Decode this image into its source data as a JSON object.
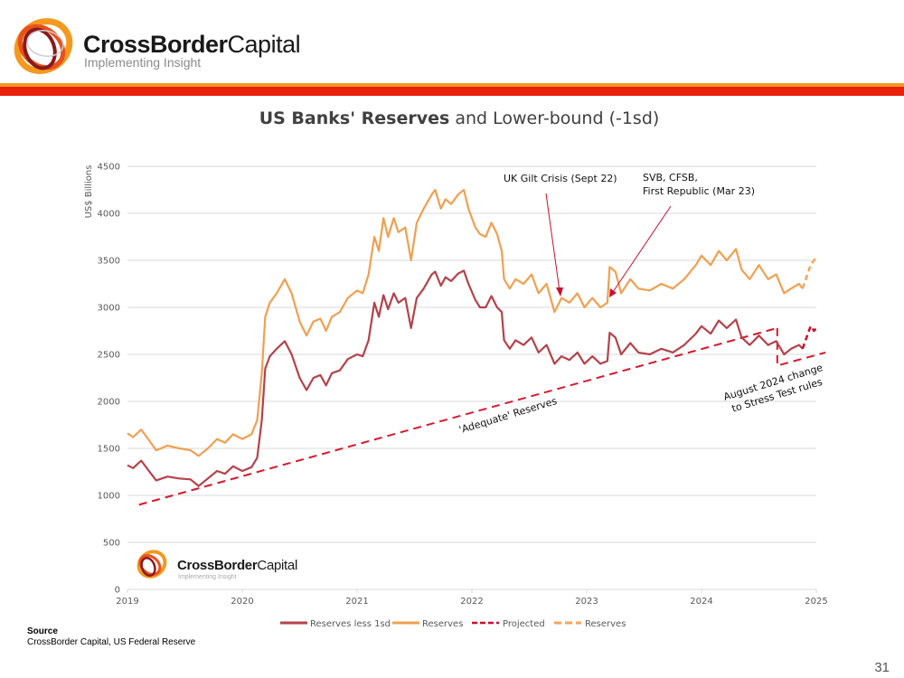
{
  "header": {
    "brand_bold": "CrossBorder",
    "brand_regular": "Capital",
    "tagline": "Implementing Insight",
    "colors": {
      "orange_rule": "#f39a1e",
      "red_band": "#e8200c"
    }
  },
  "watermark": {
    "brand_bold": "CrossBorder",
    "brand_regular": "Capital",
    "tagline": "Implementing Insight"
  },
  "footer": {
    "source_label": "Source",
    "source_text": "CrossBorder Capital, US Federal Reserve",
    "page_number": "31"
  },
  "chart_data": {
    "type": "line",
    "title_bold": "US Banks' Reserves",
    "title_rest": " and Lower-bound (-1sd)",
    "ylabel": "US$ Billions",
    "xlabel": "",
    "xlim": [
      2019,
      2025
    ],
    "ylim": [
      0,
      4500
    ],
    "x_ticks": [
      "2019",
      "2020",
      "2021",
      "2022",
      "2023",
      "2024",
      "2025"
    ],
    "y_ticks": [
      "0",
      "500",
      "1000",
      "1500",
      "2000",
      "2500",
      "3000",
      "3500",
      "4000",
      "4500"
    ],
    "grid": "horizontal",
    "legend_position": "bottom",
    "x": [
      2019.0,
      2019.05,
      2019.12,
      2019.18,
      2019.25,
      2019.35,
      2019.45,
      2019.55,
      2019.62,
      2019.7,
      2019.78,
      2019.85,
      2019.92,
      2020.0,
      2020.08,
      2020.13,
      2020.17,
      2020.2,
      2020.24,
      2020.3,
      2020.37,
      2020.43,
      2020.5,
      2020.56,
      2020.62,
      2020.68,
      2020.73,
      2020.78,
      2020.85,
      2020.92,
      2021.0,
      2021.05,
      2021.1,
      2021.15,
      2021.19,
      2021.23,
      2021.27,
      2021.32,
      2021.36,
      2021.42,
      2021.47,
      2021.52,
      2021.58,
      2021.65,
      2021.68,
      2021.73,
      2021.77,
      2021.82,
      2021.88,
      2021.93,
      2021.97,
      2022.03,
      2022.07,
      2022.12,
      2022.17,
      2022.22,
      2022.26,
      2022.28,
      2022.33,
      2022.38,
      2022.45,
      2022.52,
      2022.58,
      2022.65,
      2022.72,
      2022.78,
      2022.85,
      2022.92,
      2022.98,
      2023.05,
      2023.12,
      2023.18,
      2023.2,
      2023.25,
      2023.3,
      2023.38,
      2023.45,
      2023.55,
      2023.65,
      2023.75,
      2023.85,
      2023.95,
      2024.0,
      2024.08,
      2024.15,
      2024.22,
      2024.3,
      2024.35,
      2024.42,
      2024.5,
      2024.58,
      2024.65,
      2024.72,
      2024.78,
      2024.85,
      2024.88
    ],
    "series": [
      {
        "name": "Reserves less 1sd",
        "color": "#b5424a",
        "style": "solid",
        "values": [
          1320,
          1290,
          1370,
          1270,
          1160,
          1200,
          1180,
          1170,
          1100,
          1180,
          1260,
          1230,
          1310,
          1260,
          1300,
          1400,
          1800,
          2350,
          2480,
          2560,
          2640,
          2500,
          2250,
          2120,
          2250,
          2280,
          2170,
          2300,
          2330,
          2450,
          2500,
          2480,
          2650,
          3050,
          2900,
          3130,
          2980,
          3150,
          3050,
          3100,
          2780,
          3100,
          3200,
          3350,
          3380,
          3230,
          3320,
          3280,
          3360,
          3390,
          3250,
          3080,
          3000,
          3000,
          3120,
          3000,
          2950,
          2650,
          2560,
          2650,
          2600,
          2680,
          2520,
          2600,
          2400,
          2480,
          2440,
          2520,
          2400,
          2480,
          2400,
          2430,
          2730,
          2680,
          2500,
          2620,
          2520,
          2500,
          2560,
          2520,
          2600,
          2720,
          2800,
          2720,
          2860,
          2780,
          2870,
          2680,
          2600,
          2700,
          2600,
          2640,
          2500,
          2560,
          2600,
          2560
        ]
      },
      {
        "name": "Reserves",
        "color": "#f0a050",
        "style": "solid",
        "values": [
          1660,
          1620,
          1700,
          1600,
          1480,
          1530,
          1500,
          1480,
          1420,
          1500,
          1600,
          1560,
          1650,
          1600,
          1650,
          1800,
          2300,
          2900,
          3050,
          3150,
          3300,
          3150,
          2850,
          2700,
          2850,
          2880,
          2750,
          2900,
          2950,
          3100,
          3180,
          3150,
          3350,
          3750,
          3600,
          3950,
          3750,
          3950,
          3800,
          3850,
          3500,
          3900,
          4050,
          4200,
          4250,
          4050,
          4150,
          4100,
          4200,
          4250,
          4050,
          3850,
          3780,
          3750,
          3900,
          3780,
          3600,
          3300,
          3200,
          3300,
          3250,
          3350,
          3150,
          3250,
          2950,
          3100,
          3050,
          3150,
          3000,
          3100,
          3000,
          3050,
          3430,
          3380,
          3150,
          3300,
          3200,
          3180,
          3250,
          3200,
          3300,
          3450,
          3550,
          3450,
          3600,
          3500,
          3620,
          3400,
          3300,
          3450,
          3300,
          3350,
          3150,
          3200,
          3250,
          3200
        ]
      },
      {
        "name": "Projected",
        "color": "#c8102e",
        "style": "dashed",
        "x": [
          2024.88,
          2024.95,
          2024.98,
          2025.0
        ],
        "values": [
          2560,
          2800,
          2750,
          2780
        ]
      },
      {
        "name": "Reserves",
        "color": "#f5a55a",
        "style": "dashed",
        "x": [
          2024.88,
          2024.95,
          2024.98,
          2025.0
        ],
        "values": [
          3200,
          3450,
          3500,
          3550
        ]
      }
    ],
    "trend_lines": [
      {
        "label": "'Adequate' Reserves",
        "color": "#d7192d",
        "style": "dashed",
        "x": [
          2019.1,
          2024.66
        ],
        "values": [
          900,
          2780
        ]
      },
      {
        "label": "August 2024 change to Stress Test rules",
        "color": "#d7192d",
        "style": "dashed",
        "x": [
          2024.66,
          2024.66,
          2025.08
        ],
        "values": [
          2780,
          2380,
          2520
        ]
      }
    ],
    "annotations": [
      {
        "text": "UK Gilt Crisis (Sept 22)",
        "points_to": [
          2022.72,
          3050
        ]
      },
      {
        "text_line1": "SVB, CFSB,",
        "text_line2": "First Republic (Mar 23)",
        "points_to": [
          2023.21,
          3050
        ]
      },
      {
        "text": "'Adequate' Reserves"
      },
      {
        "text_line1": "August 2024 change",
        "text_line2": "to Stress Test rules"
      }
    ]
  }
}
